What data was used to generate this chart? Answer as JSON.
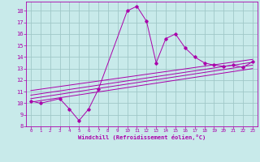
{
  "title": "",
  "xlabel": "Windchill (Refroidissement éolien,°C)",
  "background_color": "#c8eaea",
  "grid_color": "#a0c8c8",
  "line_color": "#aa00aa",
  "xlim": [
    -0.5,
    23.5
  ],
  "ylim": [
    8,
    18.8
  ],
  "yticks": [
    8,
    9,
    10,
    11,
    12,
    13,
    14,
    15,
    16,
    17,
    18
  ],
  "xticks": [
    0,
    1,
    2,
    3,
    4,
    5,
    6,
    7,
    8,
    9,
    10,
    11,
    12,
    13,
    14,
    15,
    16,
    17,
    18,
    19,
    20,
    21,
    22,
    23
  ],
  "main_x": [
    0,
    1,
    3,
    4,
    5,
    6,
    7,
    10,
    11,
    12,
    13,
    14,
    15,
    16,
    17,
    18,
    19,
    20,
    21,
    22,
    23
  ],
  "main_y": [
    10.2,
    10.0,
    10.4,
    9.5,
    8.5,
    9.5,
    11.2,
    18.0,
    18.4,
    17.1,
    13.5,
    15.6,
    16.0,
    14.8,
    14.0,
    13.5,
    13.3,
    13.2,
    13.3,
    13.1,
    13.6
  ],
  "straight_lines": [
    {
      "x": [
        0,
        23
      ],
      "y": [
        10.1,
        13.0
      ]
    },
    {
      "x": [
        0,
        23
      ],
      "y": [
        10.4,
        13.3
      ]
    },
    {
      "x": [
        0,
        23
      ],
      "y": [
        10.7,
        13.55
      ]
    },
    {
      "x": [
        0,
        23
      ],
      "y": [
        11.1,
        13.8
      ]
    }
  ]
}
